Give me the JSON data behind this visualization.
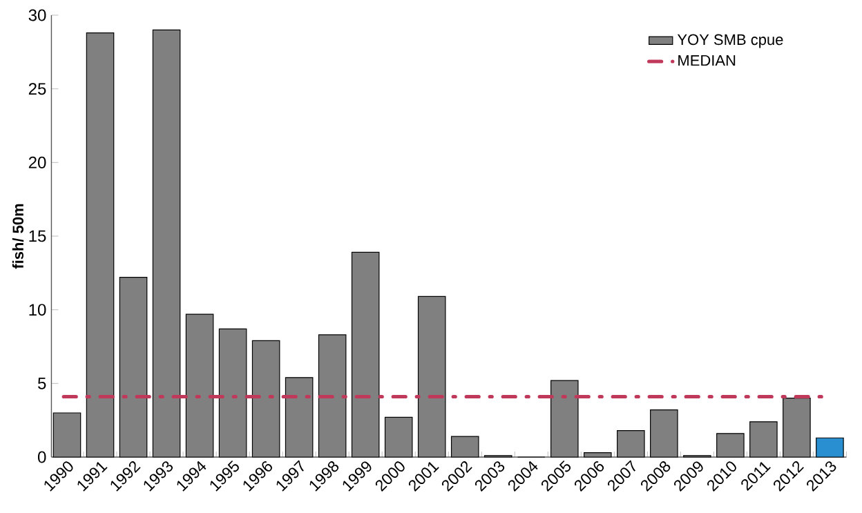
{
  "chart_data": {
    "type": "bar",
    "ylabel": "fish/ 50m",
    "categories": [
      "1990",
      "1991",
      "1992",
      "1993",
      "1994",
      "1995",
      "1996",
      "1997",
      "1998",
      "1999",
      "2000",
      "2001",
      "2002",
      "2003",
      "2004",
      "2005",
      "2006",
      "2007",
      "2008",
      "2009",
      "2010",
      "2011",
      "2012",
      "2013"
    ],
    "series": [
      {
        "name": "YOY SMB cpue",
        "color": "#808080",
        "colors": [
          "#808080",
          "#808080",
          "#808080",
          "#808080",
          "#808080",
          "#808080",
          "#808080",
          "#808080",
          "#808080",
          "#808080",
          "#808080",
          "#808080",
          "#808080",
          "#808080",
          "#808080",
          "#808080",
          "#808080",
          "#808080",
          "#808080",
          "#808080",
          "#808080",
          "#808080",
          "#808080",
          "#2a8fd0"
        ],
        "values": [
          3.0,
          28.8,
          12.2,
          29.0,
          9.7,
          8.7,
          7.9,
          5.4,
          8.3,
          13.9,
          2.7,
          10.9,
          1.4,
          0.1,
          0.0,
          5.2,
          0.3,
          1.8,
          3.2,
          0.1,
          1.6,
          2.4,
          4.0,
          1.3
        ]
      }
    ],
    "ref_lines": [
      {
        "axis": "y",
        "value": 4.1,
        "label": "MEDIAN",
        "color": "#c0395a",
        "line_style": "dashdot"
      }
    ],
    "ylim": [
      0,
      30
    ],
    "yticks": [
      0,
      5,
      10,
      15,
      20,
      25,
      30
    ],
    "legend": "top right"
  }
}
